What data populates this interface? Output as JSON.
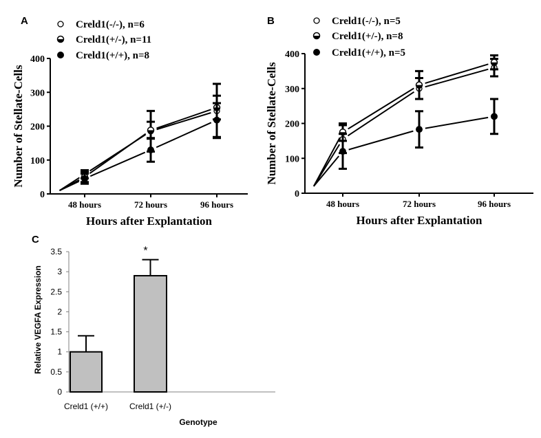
{
  "chart_data": [
    {
      "panel": "A",
      "type": "line",
      "categories": [
        "48 hours",
        "72 hours",
        "96 hours"
      ],
      "start_value": 10,
      "xlabel": "Hours after Explantation",
      "ylabel": "Number of Stellate-Cells",
      "ylim": [
        0,
        400
      ],
      "yticks": [
        0,
        100,
        200,
        300,
        400
      ],
      "legend_position": "top-left",
      "series": [
        {
          "name": "Creld1(-/-), n=6",
          "marker": "open",
          "values": [
            58,
            185,
            245
          ],
          "errors": [
            12,
            60,
            80
          ]
        },
        {
          "name": "Creld1(+/-), n=11",
          "marker": "half",
          "values": [
            50,
            188,
            255
          ],
          "errors": [
            15,
            25,
            35
          ]
        },
        {
          "name": "Creld1(+/+), n=8",
          "marker": "filled",
          "values": [
            45,
            130,
            218
          ],
          "errors": [
            15,
            35,
            50
          ]
        }
      ]
    },
    {
      "panel": "B",
      "type": "line",
      "categories": [
        "48 hours",
        "72 hours",
        "96 hours"
      ],
      "start_value": 20,
      "xlabel": "Hours after Explantation",
      "ylabel": "Number of Stellate-Cells",
      "ylim": [
        0,
        400
      ],
      "yticks": [
        0,
        100,
        200,
        300,
        400
      ],
      "legend_position": "top-left",
      "series": [
        {
          "name": "Creld1(-/-), n=5",
          "marker": "open",
          "values": [
            155,
            300,
            360
          ],
          "errors": [
            40,
            30,
            25
          ]
        },
        {
          "name": "Creld1(+/-), n=8",
          "marker": "half",
          "values": [
            175,
            310,
            375
          ],
          "errors": [
            25,
            40,
            20
          ]
        },
        {
          "name": "Creld1(+/+), n=5",
          "marker": "filled",
          "values": [
            120,
            183,
            220
          ],
          "errors": [
            50,
            52,
            50
          ]
        }
      ]
    },
    {
      "panel": "C",
      "type": "bar",
      "categories": [
        "Creld1 (+/+)",
        "Creld1 (+/-)"
      ],
      "values": [
        1.0,
        2.9
      ],
      "errors": [
        0.4,
        0.4
      ],
      "annotations": [
        "",
        "*"
      ],
      "xlabel": "Genotype",
      "ylabel": "Relative VEGFA Expression",
      "ylim": [
        0,
        3.5
      ],
      "yticks": [
        "0",
        "0.5",
        "1",
        "1.5",
        "2",
        "2.5",
        "3",
        "3.5"
      ],
      "bar_color": "#c0c0c0"
    }
  ]
}
